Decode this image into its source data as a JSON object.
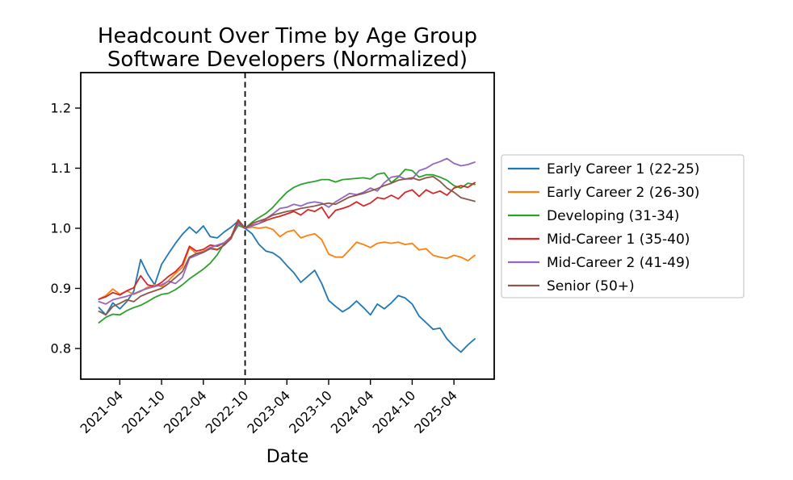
{
  "title": "Headcount Over Time by Age Group",
  "subtitle": "Software Developers (Normalized)",
  "chart_data": {
    "type": "line",
    "title": "Headcount Over Time by Age Group",
    "subtitle": "Software Developers (Normalized)",
    "xlabel": "Date",
    "ylabel": "",
    "grid": false,
    "legend_position": "center-right-outside",
    "ylim": [
      0.749,
      1.259
    ],
    "y_tick_labels": [
      "0.8",
      "0.9",
      "1.0",
      "1.1",
      "1.2"
    ],
    "x_tick_labels": [
      "2021-04",
      "2021-10",
      "2022-04",
      "2022-10",
      "2023-04",
      "2023-10",
      "2024-04",
      "2024-10",
      "2025-04"
    ],
    "vline": {
      "x": "2022-10",
      "style": "dashed",
      "color": "#000000"
    },
    "x": [
      "2021-01",
      "2021-02",
      "2021-03",
      "2021-04",
      "2021-05",
      "2021-06",
      "2021-07",
      "2021-08",
      "2021-09",
      "2021-10",
      "2021-11",
      "2021-12",
      "2022-01",
      "2022-02",
      "2022-03",
      "2022-04",
      "2022-05",
      "2022-06",
      "2022-07",
      "2022-08",
      "2022-09",
      "2022-10",
      "2022-11",
      "2022-12",
      "2023-01",
      "2023-02",
      "2023-03",
      "2023-04",
      "2023-05",
      "2023-06",
      "2023-07",
      "2023-08",
      "2023-09",
      "2023-10",
      "2023-11",
      "2023-12",
      "2024-01",
      "2024-02",
      "2024-03",
      "2024-04",
      "2024-05",
      "2024-06",
      "2024-07",
      "2024-08",
      "2024-09",
      "2024-10",
      "2024-11",
      "2024-12",
      "2025-01",
      "2025-02",
      "2025-03",
      "2025-04",
      "2025-05",
      "2025-06",
      "2025-07"
    ],
    "series": [
      {
        "name": "Early Career 1 (22-25)",
        "color": "#1f77b4",
        "values": [
          0.868,
          0.856,
          0.876,
          0.866,
          0.878,
          0.895,
          0.948,
          0.924,
          0.906,
          0.94,
          0.958,
          0.975,
          0.99,
          1.002,
          0.992,
          1.004,
          0.986,
          0.984,
          0.994,
          1.002,
          1.012,
          1.0,
          0.991,
          0.973,
          0.962,
          0.959,
          0.951,
          0.938,
          0.926,
          0.91,
          0.92,
          0.93,
          0.908,
          0.88,
          0.87,
          0.861,
          0.868,
          0.879,
          0.868,
          0.856,
          0.874,
          0.866,
          0.876,
          0.888,
          0.884,
          0.874,
          0.854,
          0.843,
          0.832,
          0.834,
          0.816,
          0.804,
          0.794,
          0.806,
          0.816
        ]
      },
      {
        "name": "Early Career 2 (26-30)",
        "color": "#ff7f0e",
        "values": [
          0.882,
          0.888,
          0.899,
          0.89,
          0.896,
          0.89,
          0.895,
          0.902,
          0.906,
          0.903,
          0.913,
          0.925,
          0.935,
          0.968,
          0.958,
          0.962,
          0.968,
          0.965,
          0.972,
          0.985,
          1.01,
          1.0,
          1.002,
          1.0,
          1.002,
          0.998,
          0.986,
          0.994,
          0.997,
          0.984,
          0.988,
          0.991,
          0.981,
          0.957,
          0.952,
          0.952,
          0.964,
          0.977,
          0.973,
          0.968,
          0.975,
          0.977,
          0.975,
          0.977,
          0.973,
          0.975,
          0.964,
          0.966,
          0.955,
          0.952,
          0.95,
          0.955,
          0.952,
          0.946,
          0.955
        ]
      },
      {
        "name": "Developing (31-34)",
        "color": "#2ca02c",
        "values": [
          0.843,
          0.852,
          0.857,
          0.856,
          0.863,
          0.868,
          0.872,
          0.878,
          0.885,
          0.89,
          0.892,
          0.898,
          0.906,
          0.916,
          0.924,
          0.932,
          0.942,
          0.956,
          0.975,
          0.985,
          1.005,
          1.0,
          1.01,
          1.018,
          1.025,
          1.035,
          1.048,
          1.06,
          1.068,
          1.073,
          1.076,
          1.078,
          1.081,
          1.081,
          1.077,
          1.081,
          1.082,
          1.083,
          1.084,
          1.082,
          1.09,
          1.092,
          1.076,
          1.085,
          1.098,
          1.096,
          1.085,
          1.089,
          1.089,
          1.085,
          1.08,
          1.071,
          1.067,
          1.075,
          1.073
        ]
      },
      {
        "name": "Mid-Career 1 (35-40)",
        "color": "#d62728",
        "values": [
          0.882,
          0.886,
          0.893,
          0.889,
          0.896,
          0.901,
          0.921,
          0.906,
          0.903,
          0.91,
          0.92,
          0.928,
          0.94,
          0.97,
          0.962,
          0.965,
          0.972,
          0.97,
          0.976,
          0.986,
          1.014,
          1.0,
          1.005,
          1.008,
          1.013,
          1.017,
          1.02,
          1.024,
          1.028,
          1.022,
          1.031,
          1.028,
          1.035,
          1.017,
          1.03,
          1.033,
          1.037,
          1.044,
          1.037,
          1.042,
          1.051,
          1.049,
          1.055,
          1.049,
          1.06,
          1.064,
          1.053,
          1.064,
          1.058,
          1.062,
          1.055,
          1.067,
          1.071,
          1.068,
          1.076
        ]
      },
      {
        "name": "Mid-Career 2 (41-49)",
        "color": "#9467bd",
        "values": [
          0.878,
          0.874,
          0.881,
          0.884,
          0.887,
          0.891,
          0.896,
          0.9,
          0.903,
          0.906,
          0.912,
          0.908,
          0.918,
          0.95,
          0.955,
          0.96,
          0.968,
          0.972,
          0.976,
          0.984,
          1.008,
          1.0,
          1.004,
          1.008,
          1.016,
          1.024,
          1.033,
          1.035,
          1.04,
          1.037,
          1.042,
          1.044,
          1.042,
          1.035,
          1.044,
          1.051,
          1.058,
          1.056,
          1.06,
          1.067,
          1.062,
          1.076,
          1.085,
          1.087,
          1.082,
          1.082,
          1.096,
          1.1,
          1.107,
          1.111,
          1.116,
          1.108,
          1.104,
          1.106,
          1.11
        ]
      },
      {
        "name": "Senior (50+)",
        "color": "#8c564b",
        "values": [
          0.862,
          0.856,
          0.87,
          0.875,
          0.881,
          0.878,
          0.887,
          0.892,
          0.896,
          0.9,
          0.908,
          0.918,
          0.928,
          0.952,
          0.958,
          0.96,
          0.966,
          0.964,
          0.972,
          0.983,
          1.012,
          1.0,
          1.008,
          1.012,
          1.016,
          1.022,
          1.025,
          1.028,
          1.03,
          1.033,
          1.035,
          1.037,
          1.04,
          1.042,
          1.04,
          1.046,
          1.052,
          1.055,
          1.058,
          1.062,
          1.066,
          1.071,
          1.075,
          1.08,
          1.082,
          1.084,
          1.08,
          1.084,
          1.086,
          1.078,
          1.067,
          1.06,
          1.051,
          1.048,
          1.045
        ]
      }
    ]
  }
}
